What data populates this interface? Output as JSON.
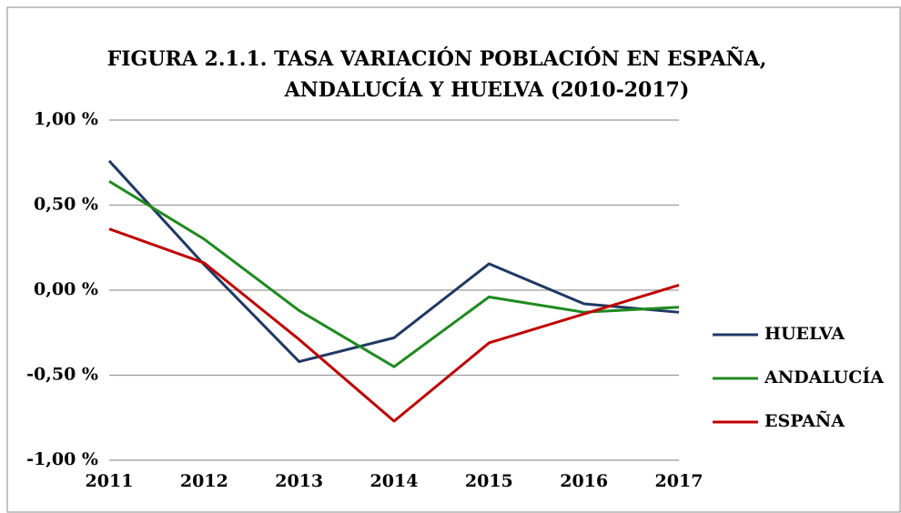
{
  "chart_data": {
    "type": "line",
    "title": [
      "FIGURA 2.1.1.  TASA VARIACIÓN POBLACIÓN EN ESPAÑA,",
      "ANDALUCÍA Y HUELVA (2010-2017)"
    ],
    "categories": [
      "2011",
      "2012",
      "2013",
      "2014",
      "2015",
      "2016",
      "2017"
    ],
    "series": [
      {
        "name": "HUELVA",
        "color": "#1f3864",
        "values": [
          0.76,
          0.15,
          -0.42,
          -0.28,
          0.155,
          -0.08,
          -0.13
        ]
      },
      {
        "name": "ANDALUCÍA",
        "color": "#1e8a1e",
        "values": [
          0.64,
          0.3,
          -0.12,
          -0.45,
          -0.04,
          -0.13,
          -0.1
        ]
      },
      {
        "name": "ESPAÑA",
        "color": "#c00000",
        "values": [
          0.36,
          0.16,
          -0.29,
          -0.77,
          -0.31,
          -0.14,
          0.03
        ]
      }
    ],
    "ylim": [
      -1,
      1
    ],
    "yticks": [
      {
        "value": -1,
        "label": "-1,00 %"
      },
      {
        "value": -0.5,
        "label": "-0,50 %"
      },
      {
        "value": 0,
        "label": "0,00 %"
      },
      {
        "value": 0.5,
        "label": "0,50 %"
      },
      {
        "value": 1,
        "label": "1,00 %"
      }
    ],
    "grid": true,
    "legend": "right"
  }
}
